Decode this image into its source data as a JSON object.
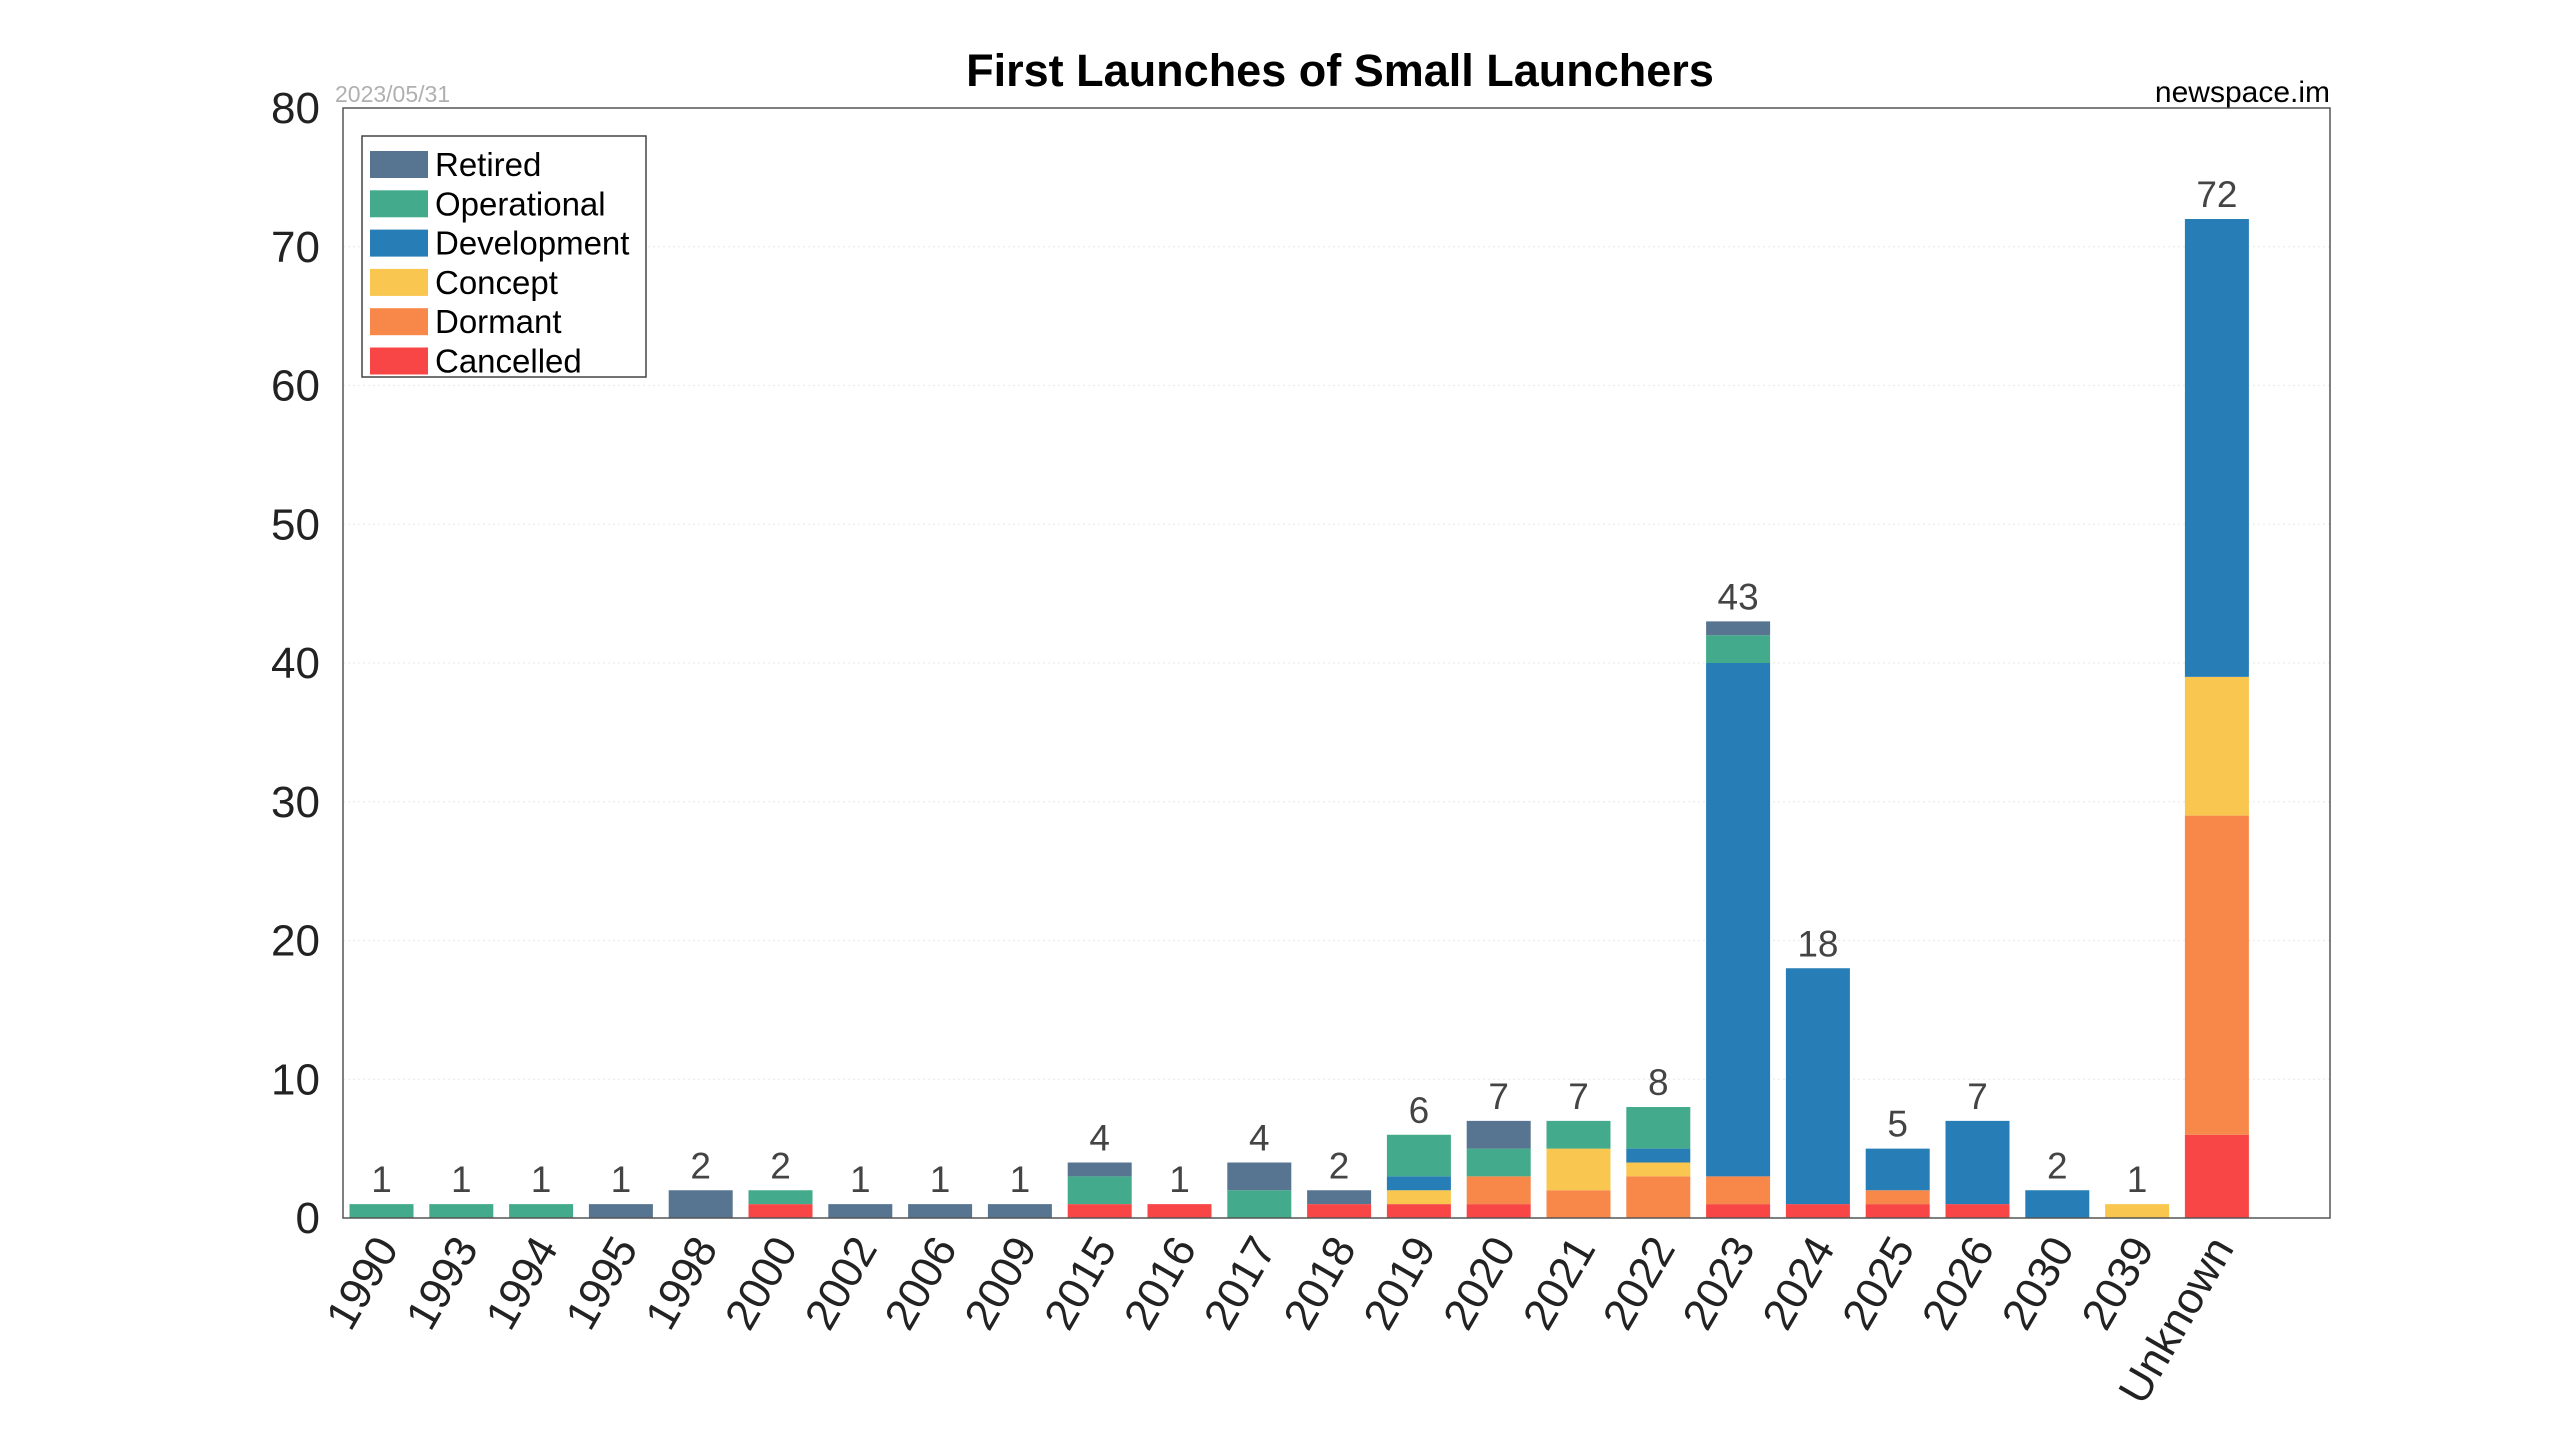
{
  "chart_data": {
    "type": "bar",
    "stacked": true,
    "title": "First Launches of Small Launchers",
    "date": "2023/05/31",
    "source": "newspace.im",
    "xlabel": "",
    "ylabel": "",
    "ylim": [
      0,
      80
    ],
    "yticks": [
      0,
      10,
      20,
      30,
      40,
      50,
      60,
      70,
      80
    ],
    "grid": true,
    "legend_position": "top-left",
    "categories": [
      "1990",
      "1993",
      "1994",
      "1995",
      "1998",
      "2000",
      "2002",
      "2006",
      "2009",
      "2015",
      "2016",
      "2017",
      "2018",
      "2019",
      "2020",
      "2021",
      "2022",
      "2023",
      "2024",
      "2025",
      "2026",
      "2030",
      "2039",
      "Unknown"
    ],
    "totals": [
      1,
      1,
      1,
      1,
      2,
      2,
      1,
      1,
      1,
      4,
      1,
      4,
      2,
      6,
      7,
      7,
      8,
      43,
      18,
      5,
      7,
      2,
      1,
      72
    ],
    "series": [
      {
        "name": "Cancelled",
        "color": "#f84545",
        "values": [
          0,
          0,
          0,
          0,
          0,
          1,
          0,
          0,
          0,
          1,
          1,
          0,
          1,
          1,
          1,
          0,
          0,
          1,
          1,
          1,
          1,
          0,
          0,
          6
        ]
      },
      {
        "name": "Dormant",
        "color": "#f7884a",
        "values": [
          0,
          0,
          0,
          0,
          0,
          0,
          0,
          0,
          0,
          0,
          0,
          0,
          0,
          0,
          2,
          2,
          3,
          2,
          0,
          1,
          0,
          0,
          0,
          23
        ]
      },
      {
        "name": "Concept",
        "color": "#f9c74f",
        "values": [
          0,
          0,
          0,
          0,
          0,
          0,
          0,
          0,
          0,
          0,
          0,
          0,
          0,
          1,
          0,
          3,
          1,
          0,
          0,
          0,
          0,
          0,
          1,
          10
        ]
      },
      {
        "name": "Development",
        "color": "#277db6",
        "values": [
          0,
          0,
          0,
          0,
          0,
          0,
          0,
          0,
          0,
          0,
          0,
          0,
          0,
          1,
          0,
          0,
          1,
          37,
          17,
          3,
          6,
          2,
          0,
          33
        ]
      },
      {
        "name": "Operational",
        "color": "#43aa8b",
        "values": [
          1,
          1,
          1,
          0,
          0,
          1,
          0,
          0,
          0,
          2,
          0,
          2,
          0,
          3,
          2,
          2,
          3,
          2,
          0,
          0,
          0,
          0,
          0,
          0
        ]
      },
      {
        "name": "Retired",
        "color": "#577590",
        "values": [
          0,
          0,
          0,
          1,
          2,
          0,
          1,
          1,
          1,
          1,
          0,
          2,
          1,
          0,
          2,
          0,
          0,
          1,
          0,
          0,
          0,
          0,
          0,
          0
        ]
      }
    ],
    "legend_order": [
      "Retired",
      "Operational",
      "Development",
      "Concept",
      "Dormant",
      "Cancelled"
    ]
  }
}
